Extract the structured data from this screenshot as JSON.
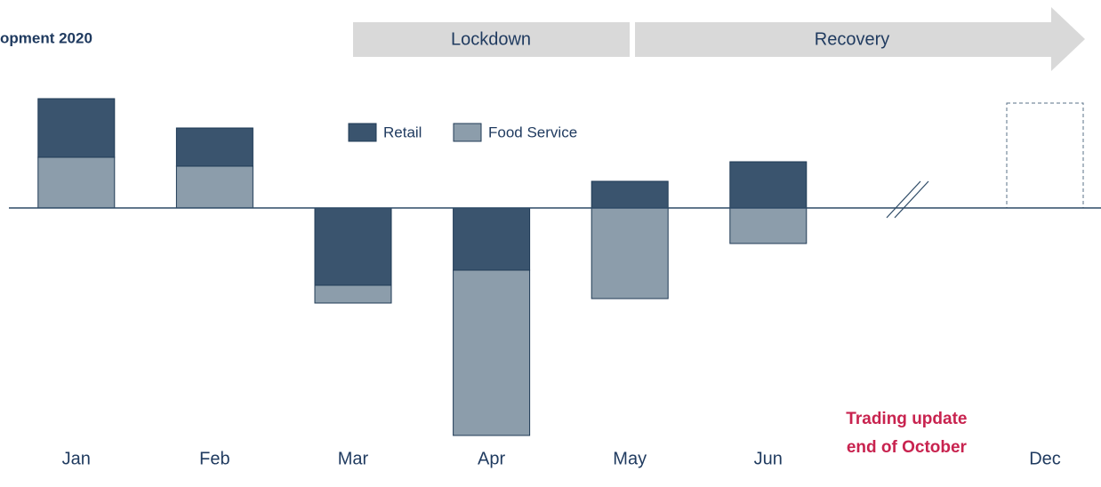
{
  "chart_data": {
    "type": "stacked_bar",
    "title": "opment 2020",
    "annotations": [
      "Lockdown",
      "Recovery"
    ],
    "categories": [
      "Jan",
      "Feb",
      "Mar",
      "Apr",
      "May",
      "Jun",
      "Trading update end of October",
      "Dec"
    ],
    "series": [
      {
        "name": "Retail",
        "color": "#3a546e",
        "values": [
          66,
          43,
          -87,
          -70,
          30,
          52,
          null,
          null
        ]
      },
      {
        "name": "Food Service",
        "color": "#8c9dab",
        "values": [
          57,
          47,
          -20,
          -186,
          -102,
          -40,
          null,
          null
        ]
      }
    ],
    "ylim": [
      -256,
      134
    ],
    "highlight_color": "#c8234f"
  }
}
